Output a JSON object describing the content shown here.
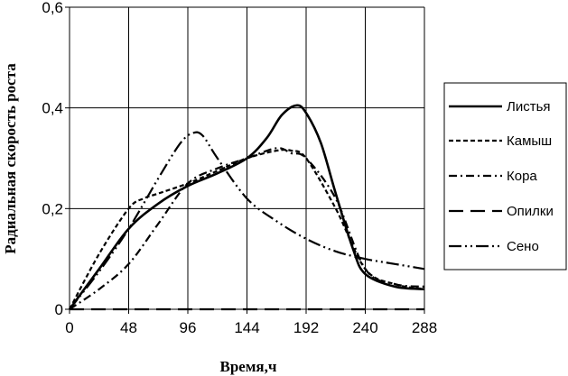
{
  "chart_data": {
    "type": "line",
    "title": "",
    "xlabel": "Время,ч",
    "ylabel": "Радиальная скорость роста",
    "xlim": [
      0,
      288
    ],
    "ylim": [
      0,
      0.6
    ],
    "xticks": [
      0,
      48,
      96,
      144,
      192,
      240,
      288
    ],
    "yticks": [
      0,
      0.2,
      0.4,
      0.6
    ],
    "xtick_labels": [
      "0",
      "48",
      "96",
      "144",
      "192",
      "240",
      "288"
    ],
    "ytick_labels": [
      "0",
      "0,2",
      "0,4",
      "0,6"
    ],
    "grid": true,
    "legend_position": "right",
    "series": [
      {
        "name": "Листья",
        "dash": "solid",
        "x": [
          0,
          24,
          48,
          72,
          96,
          120,
          144,
          160,
          172,
          184,
          192,
          204,
          216,
          230,
          240,
          264,
          288
        ],
        "y": [
          0,
          0.08,
          0.16,
          0.21,
          0.245,
          0.27,
          0.3,
          0.34,
          0.385,
          0.405,
          0.39,
          0.33,
          0.23,
          0.12,
          0.07,
          0.045,
          0.04
        ]
      },
      {
        "name": "Камыш",
        "dash": "dash",
        "x": [
          0,
          24,
          48,
          60,
          72,
          96,
          120,
          144,
          168,
          180,
          192,
          216,
          240,
          264,
          288
        ],
        "y": [
          0,
          0.11,
          0.2,
          0.22,
          0.23,
          0.25,
          0.275,
          0.3,
          0.315,
          0.315,
          0.3,
          0.2,
          0.08,
          0.05,
          0.04
        ]
      },
      {
        "name": "Кора",
        "dash": "dashdot",
        "x": [
          0,
          24,
          48,
          72,
          96,
          120,
          144,
          168,
          180,
          192,
          216,
          240,
          264,
          288
        ],
        "y": [
          0,
          0.04,
          0.09,
          0.17,
          0.25,
          0.28,
          0.3,
          0.32,
          0.31,
          0.3,
          0.22,
          0.08,
          0.05,
          0.045
        ]
      },
      {
        "name": "Опилки",
        "dash": "longdash",
        "x": [
          0,
          288
        ],
        "y": [
          0,
          0
        ]
      },
      {
        "name": "Сено",
        "dash": "dashdotdot",
        "x": [
          0,
          24,
          48,
          72,
          90,
          100,
          108,
          120,
          144,
          168,
          192,
          216,
          240,
          264,
          288
        ],
        "y": [
          0,
          0.075,
          0.16,
          0.26,
          0.33,
          0.35,
          0.345,
          0.3,
          0.22,
          0.175,
          0.14,
          0.115,
          0.1,
          0.09,
          0.08
        ]
      }
    ]
  }
}
